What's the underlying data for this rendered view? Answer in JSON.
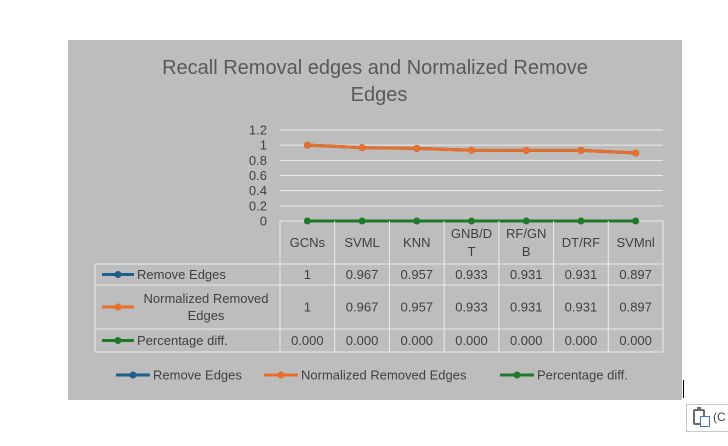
{
  "chart_data": {
    "type": "line",
    "title_lines": [
      "Recall  Removal edges and Normalized Remove",
      "Edges"
    ],
    "categories": [
      [
        "GCNs"
      ],
      [
        "SVML"
      ],
      [
        "KNN"
      ],
      [
        "GNB/D",
        "T"
      ],
      [
        "RF/GN",
        "B"
      ],
      [
        "DT/RF"
      ],
      [
        "SVMnl"
      ]
    ],
    "ylim": [
      0,
      1.2
    ],
    "yticks": [
      "1.2",
      "1",
      "0.8",
      "0.6",
      "0.4",
      "0.2",
      "0"
    ],
    "ytick_values": [
      1.2,
      1,
      0.8,
      0.6,
      0.4,
      0.2,
      0
    ],
    "grid": true,
    "legend_position": "bottom",
    "series": [
      {
        "name": "Remove Edges",
        "legend_lines": [
          "Remove Edges"
        ],
        "color": "#1f5f8b",
        "values": [
          1,
          0.967,
          0.957,
          0.933,
          0.931,
          0.931,
          0.897
        ],
        "labels": [
          "1",
          "0.967",
          "0.957",
          "0.933",
          "0.931",
          "0.931",
          "0.897"
        ]
      },
      {
        "name": "Normalized Removed Edges",
        "legend_lines": [
          "Normalized Removed",
          "Edges"
        ],
        "color": "#e8702a",
        "values": [
          1,
          0.967,
          0.957,
          0.933,
          0.931,
          0.931,
          0.897
        ],
        "labels": [
          "1",
          "0.967",
          "0.957",
          "0.933",
          "0.931",
          "0.931",
          "0.897"
        ]
      },
      {
        "name": "Percentage diff.",
        "legend_lines": [
          "Percentage diff."
        ],
        "color": "#1e7a2a",
        "values": [
          0,
          0,
          0,
          0,
          0,
          0,
          0
        ],
        "labels": [
          "0.000",
          "0.000",
          "0.000",
          "0.000",
          "0.000",
          "0.000",
          "0.000"
        ]
      }
    ]
  },
  "paste_options": {
    "label": "(C"
  }
}
